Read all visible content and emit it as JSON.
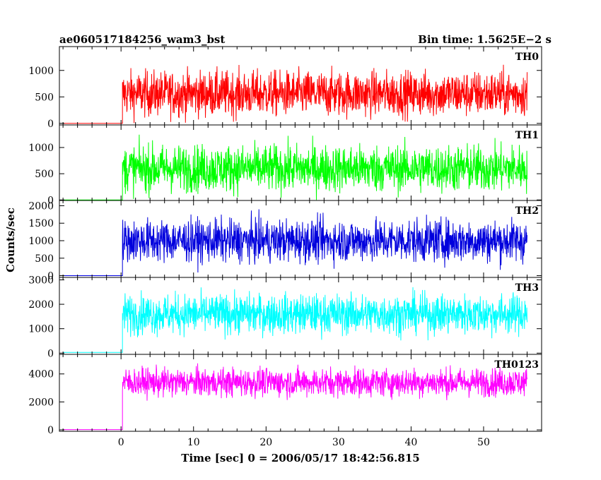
{
  "header": {
    "title": "ae060517184256_wam3_bst",
    "bin_time": "Bin time: 1.5625E−2 s"
  },
  "chart_data": {
    "type": "line",
    "xlabel": "Time [sec] 0 = 2006/05/17 18:42:56.815",
    "ylabel": "Counts/sec",
    "xlim": [
      -8.5,
      58
    ],
    "x_ticks": [
      0,
      10,
      20,
      30,
      40,
      50
    ],
    "x_tick_labels": [
      "0",
      "10",
      "20",
      "30",
      "40",
      "50"
    ],
    "x_data_range": [
      -8,
      56
    ],
    "burst_start": 0.2,
    "panels": [
      {
        "label": "TH0",
        "color": "#ff0000",
        "ylim": [
          -30,
          1450
        ],
        "y_ticks": [
          0,
          500,
          1000
        ],
        "y_tick_labels": [
          "0",
          "500",
          "1000"
        ],
        "pre_level": 0,
        "mean": 560,
        "spread": 210,
        "cap": 1400
      },
      {
        "label": "TH1",
        "color": "#00ff00",
        "ylim": [
          -10,
          1430
        ],
        "y_ticks": [
          0,
          500,
          1000
        ],
        "y_tick_labels": [
          "0",
          "500",
          "1000"
        ],
        "pre_level": 0,
        "mean": 600,
        "spread": 220,
        "cap": 1380
      },
      {
        "label": "TH2",
        "color": "#0000dd",
        "ylim": [
          -50,
          2150
        ],
        "y_ticks": [
          0,
          500,
          1000,
          1500,
          2000
        ],
        "y_tick_labels": [
          "0",
          "500",
          "1000",
          "1500",
          "2000"
        ],
        "pre_level": 0,
        "mean": 1000,
        "spread": 300,
        "cap": 2100
      },
      {
        "label": "TH3",
        "color": "#00ffff",
        "ylim": [
          -50,
          3100
        ],
        "y_ticks": [
          0,
          1000,
          2000,
          3000
        ],
        "y_tick_labels": [
          "0",
          "1000",
          "2000",
          "3000"
        ],
        "pre_level": 30,
        "mean": 1600,
        "spread": 400,
        "cap": 3000
      },
      {
        "label": "TH0123",
        "color": "#ff00ff",
        "ylim": [
          -100,
          5400
        ],
        "y_ticks": [
          0,
          2000,
          4000
        ],
        "y_tick_labels": [
          "0",
          "2000",
          "4000"
        ],
        "pre_level": 20,
        "mean": 3400,
        "spread": 500,
        "cap": 5200
      }
    ]
  }
}
